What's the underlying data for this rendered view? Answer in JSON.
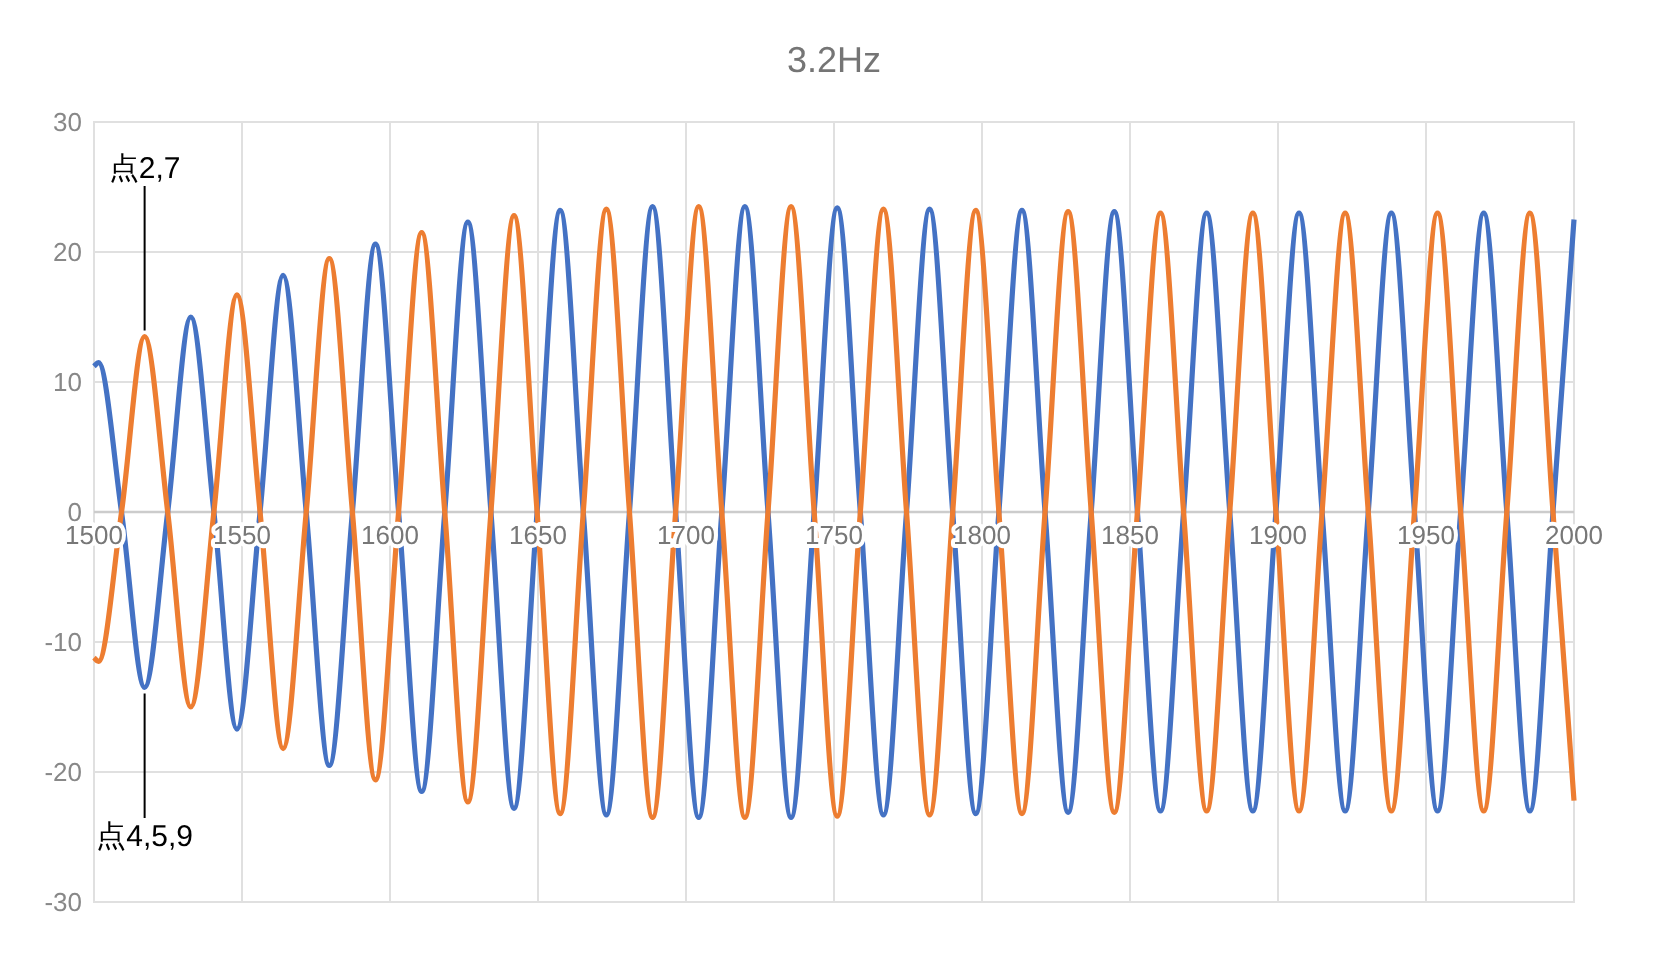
{
  "chart_data": {
    "type": "line",
    "title": "3.2Hz",
    "x": [
      1500,
      1501.5,
      1509.3,
      1517.1,
      1524.9,
      1532.7,
      1540.5,
      1548.3,
      1556.1,
      1563.9,
      1571.7,
      1579.5,
      1587.3,
      1595.1,
      1602.9,
      1610.7,
      1618.5,
      1626.3,
      1634.1,
      1641.9,
      1649.7,
      1657.5,
      1665.3,
      1673.1,
      1680.9,
      1688.7,
      1696.5,
      1704.3,
      1712.1,
      1719.9,
      1727.7,
      1735.5,
      1743.3,
      1751.1,
      1758.9,
      1766.7,
      1774.5,
      1782.3,
      1790.1,
      1797.9,
      1805.7,
      1813.5,
      1821.3,
      1829.1,
      1836.9,
      1844.7,
      1852.5,
      1860.3,
      1868.1,
      1875.9,
      1883.7,
      1891.5,
      1899.3,
      1907.1,
      1914.9,
      1922.7,
      1930.5,
      1938.3,
      1946.1,
      1953.9,
      1961.7,
      1969.5,
      1977.3,
      1985.1,
      1992.9,
      2000
    ],
    "series": [
      {
        "color": "#4472c4",
        "values": [
          11.2,
          11.5,
          0,
          -13.5,
          0,
          15,
          0,
          -16.7,
          0,
          18.2,
          0,
          -19.5,
          0,
          20.6,
          0,
          -21.5,
          0,
          22.3,
          0,
          -22.8,
          0,
          23.2,
          0,
          -23.3,
          0,
          23.5,
          0,
          -23.5,
          0,
          23.5,
          0,
          -23.5,
          0,
          23.4,
          0,
          -23.3,
          0,
          23.3,
          0,
          -23.2,
          0,
          23.2,
          0,
          -23.1,
          0,
          23.1,
          0,
          -23,
          0,
          23,
          0,
          -23,
          0,
          23,
          0,
          -23,
          0,
          23,
          0,
          -23,
          0,
          23,
          0,
          -23,
          0,
          22.5
        ]
      },
      {
        "color": "#ed7d31",
        "values": [
          -11.2,
          -11.5,
          0,
          13.5,
          0,
          -15,
          0,
          16.7,
          0,
          -18.2,
          0,
          19.5,
          0,
          -20.6,
          0,
          21.5,
          0,
          -22.3,
          0,
          22.8,
          0,
          -23.2,
          0,
          23.3,
          0,
          -23.5,
          0,
          23.5,
          0,
          -23.5,
          0,
          23.5,
          0,
          -23.4,
          0,
          23.3,
          0,
          -23.3,
          0,
          23.2,
          0,
          -23.2,
          0,
          23.1,
          0,
          -23.1,
          0,
          23,
          0,
          -23,
          0,
          23,
          0,
          -23,
          0,
          23,
          0,
          -23,
          0,
          23,
          0,
          -23,
          0,
          23,
          0,
          -22.2
        ]
      }
    ],
    "xlim": [
      1500,
      2000
    ],
    "xticks": [
      1500,
      1550,
      1600,
      1650,
      1700,
      1750,
      1800,
      1850,
      1900,
      1950,
      2000
    ],
    "ylim": [
      -30,
      30
    ],
    "yticks": [
      -30,
      -20,
      -10,
      0,
      10,
      20,
      30
    ],
    "grid": true,
    "marker": "none",
    "line_style": "solid",
    "annotations": [
      {
        "text": "点2,7",
        "x": 1517.1,
        "y": 13.5
      },
      {
        "text": "点4,5,9",
        "x": 1517.1,
        "y": -13.5
      }
    ]
  }
}
